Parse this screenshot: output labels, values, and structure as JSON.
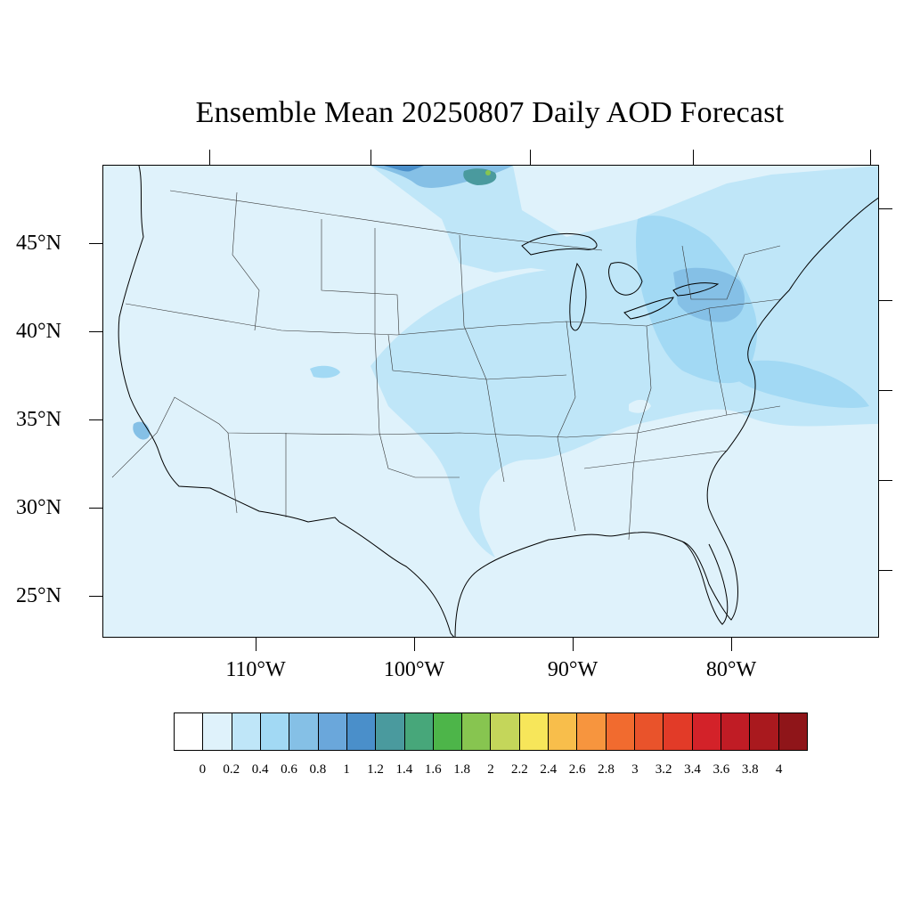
{
  "title": "Ensemble Mean 20250807 Daily AOD Forecast",
  "latitude_labels": [
    "45°N",
    "40°N",
    "35°N",
    "30°N",
    "25°N"
  ],
  "longitude_labels": [
    "110°W",
    "100°W",
    "90°W",
    "80°W"
  ],
  "colorbar": {
    "tick_labels": [
      "0",
      "0.2",
      "0.4",
      "0.6",
      "0.8",
      "1",
      "1.2",
      "1.4",
      "1.6",
      "1.8",
      "2",
      "2.2",
      "2.4",
      "2.6",
      "2.8",
      "3",
      "3.2",
      "3.4",
      "3.6",
      "3.8",
      "4"
    ],
    "colors": [
      "#ffffff",
      "#dff2fb",
      "#bfe6f8",
      "#a2d9f4",
      "#85c0e6",
      "#6aa7db",
      "#4a8fca",
      "#4a9a9e",
      "#47a77a",
      "#4db549",
      "#87c550",
      "#c4d65a",
      "#f7e65a",
      "#f8be4b",
      "#f7953e",
      "#f16b2f",
      "#e9532b",
      "#e23b28",
      "#d32229",
      "#c01c25",
      "#a9191e",
      "#8f1519"
    ]
  },
  "map": {
    "projection": "Lambert conformal, contiguous United States",
    "variable": "Aerosol Optical Depth",
    "background_level_color": "#dff2fb",
    "features": [
      {
        "region": "Canadian plume near 49N 95-100W",
        "level_range": [
          1.2,
          1.8
        ]
      },
      {
        "region": "Central Plains / Midwest band",
        "level_range": [
          0.2,
          0.4
        ]
      },
      {
        "region": "Great Lakes / New York / Pennsylvania",
        "level_range": [
          0.4,
          0.8
        ]
      },
      {
        "region": "Mid-Atlantic coast offshore plume",
        "level_range": [
          0.4,
          0.6
        ]
      },
      {
        "region": "Southern California",
        "level_range": [
          0.4,
          0.6
        ]
      },
      {
        "region": "Colorado hotspot",
        "level_range": [
          0.4,
          0.6
        ]
      }
    ]
  }
}
